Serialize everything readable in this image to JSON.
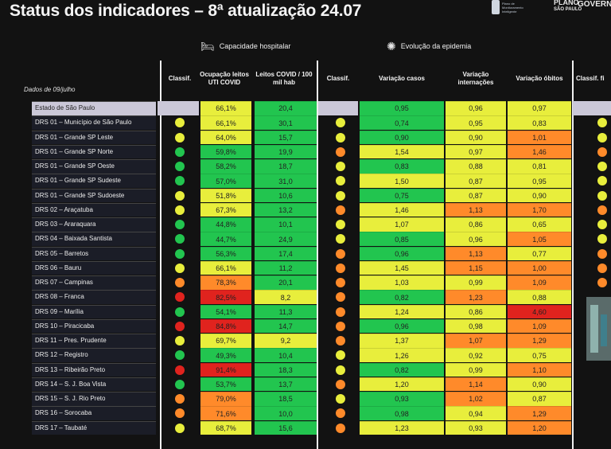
{
  "title": "Status dos indicadores – 8ª atualização 24.07",
  "logo": {
    "plano": "PLANO",
    "sp": "SÃO PAULO",
    "gov": "GOVERNO",
    "sub": "Plano de Monitoramento Inteligente"
  },
  "section_hospital": {
    "icon": "hospital-bed-icon",
    "label": "Capacidade hospitalar"
  },
  "section_epidemia": {
    "icon": "virus-icon",
    "label": "Evolução da epidemia"
  },
  "dados": "Dados de 09/julho",
  "headers": {
    "classif1": "Classif.",
    "ocupacao": "Ocupação leitos UTI COVID",
    "leitos": "Leitos COVID / 100 mil hab",
    "classif2": "Classif.",
    "var_casos": "Variação casos",
    "var_intern": "Variação internações",
    "var_obitos": "Variação óbitos",
    "classif3": "Classif. fi"
  },
  "colors": {
    "green": "#22c54f",
    "lightgreen": "#7fd43c",
    "yellow": "#e8ee3c",
    "orange": "#ff8a2a",
    "red": "#e0231e",
    "state": "#cbc8d8"
  },
  "rows": [
    {
      "name": "Estado de São Paulo",
      "state": true,
      "c1": "",
      "ocup": "66,1%",
      "ocup_c": "yellow",
      "leit": "20,4",
      "leit_c": "green",
      "c2": "",
      "casos": "0,95",
      "casos_c": "green",
      "intern": "0,96",
      "intern_c": "yellow",
      "obitos": "0,97",
      "obitos_c": "yellow",
      "c3": ""
    },
    {
      "name": "DRS 01 – Município de São Paulo",
      "c1": "yellow",
      "ocup": "66,1%",
      "ocup_c": "yellow",
      "leit": "30,1",
      "leit_c": "green",
      "c2": "yellow",
      "casos": "0,74",
      "casos_c": "green",
      "intern": "0,95",
      "intern_c": "yellow",
      "obitos": "0,83",
      "obitos_c": "yellow",
      "c3": "yellow"
    },
    {
      "name": "DRS 01 – Grande SP Leste",
      "c1": "yellow",
      "ocup": "64,0%",
      "ocup_c": "yellow",
      "leit": "15,7",
      "leit_c": "green",
      "c2": "yellow",
      "casos": "0,90",
      "casos_c": "green",
      "intern": "0,90",
      "intern_c": "yellow",
      "obitos": "1,01",
      "obitos_c": "orange",
      "c3": "yellow"
    },
    {
      "name": "DRS 01 – Grande SP Norte",
      "c1": "green",
      "ocup": "59,8%",
      "ocup_c": "green",
      "leit": "19,9",
      "leit_c": "green",
      "c2": "orange",
      "casos": "1,54",
      "casos_c": "yellow",
      "intern": "0,97",
      "intern_c": "yellow",
      "obitos": "1,46",
      "obitos_c": "orange",
      "c3": "orange"
    },
    {
      "name": "DRS 01 – Grande SP Oeste",
      "c1": "green",
      "ocup": "58,2%",
      "ocup_c": "green",
      "leit": "18,7",
      "leit_c": "green",
      "c2": "yellow",
      "casos": "0,83",
      "casos_c": "green",
      "intern": "0,88",
      "intern_c": "yellow",
      "obitos": "0,81",
      "obitos_c": "yellow",
      "c3": "yellow"
    },
    {
      "name": "DRS 01 – Grande SP Sudeste",
      "c1": "green",
      "ocup": "57,0%",
      "ocup_c": "green",
      "leit": "31,0",
      "leit_c": "green",
      "c2": "yellow",
      "casos": "1,50",
      "casos_c": "yellow",
      "intern": "0,87",
      "intern_c": "yellow",
      "obitos": "0,95",
      "obitos_c": "yellow",
      "c3": "yellow"
    },
    {
      "name": "DRS 01 – Grande SP Sudoeste",
      "c1": "yellow",
      "ocup": "51,8%",
      "ocup_c": "yellow",
      "leit": "10,6",
      "leit_c": "green",
      "c2": "yellow",
      "casos": "0,75",
      "casos_c": "green",
      "intern": "0,87",
      "intern_c": "yellow",
      "obitos": "0,90",
      "obitos_c": "yellow",
      "c3": "yellow"
    },
    {
      "name": "DRS 02 – Araçatuba",
      "c1": "yellow",
      "ocup": "67,3%",
      "ocup_c": "yellow",
      "leit": "13,2",
      "leit_c": "green",
      "c2": "orange",
      "casos": "1,46",
      "casos_c": "yellow",
      "intern": "1,13",
      "intern_c": "orange",
      "obitos": "1,70",
      "obitos_c": "orange",
      "c3": "orange"
    },
    {
      "name": "DRS 03 – Araraquara",
      "c1": "green",
      "ocup": "44,8%",
      "ocup_c": "green",
      "leit": "10,1",
      "leit_c": "green",
      "c2": "yellow",
      "casos": "1,07",
      "casos_c": "yellow",
      "intern": "0,86",
      "intern_c": "yellow",
      "obitos": "0,65",
      "obitos_c": "yellow",
      "c3": "yellow"
    },
    {
      "name": "DRS 04 – Baixada Santista",
      "c1": "green",
      "ocup": "44,7%",
      "ocup_c": "green",
      "leit": "24,9",
      "leit_c": "green",
      "c2": "yellow",
      "casos": "0,85",
      "casos_c": "green",
      "intern": "0,96",
      "intern_c": "yellow",
      "obitos": "1,05",
      "obitos_c": "orange",
      "c3": "yellow"
    },
    {
      "name": "DRS 05 – Barretos",
      "c1": "green",
      "ocup": "56,3%",
      "ocup_c": "green",
      "leit": "17,4",
      "leit_c": "green",
      "c2": "orange",
      "casos": "0,96",
      "casos_c": "green",
      "intern": "1,13",
      "intern_c": "orange",
      "obitos": "0,77",
      "obitos_c": "yellow",
      "c3": "orange"
    },
    {
      "name": "DRS 06 – Bauru",
      "c1": "yellow",
      "ocup": "66,1%",
      "ocup_c": "yellow",
      "leit": "11,2",
      "leit_c": "green",
      "c2": "orange",
      "casos": "1,45",
      "casos_c": "yellow",
      "intern": "1,15",
      "intern_c": "orange",
      "obitos": "1,00",
      "obitos_c": "orange",
      "c3": "orange"
    },
    {
      "name": "DRS 07 – Campinas",
      "c1": "orange",
      "ocup": "78,3%",
      "ocup_c": "orange",
      "leit": "20,1",
      "leit_c": "green",
      "c2": "orange",
      "casos": "1,03",
      "casos_c": "yellow",
      "intern": "0,99",
      "intern_c": "yellow",
      "obitos": "1,09",
      "obitos_c": "orange",
      "c3": "orange"
    },
    {
      "name": "DRS 08 – Franca",
      "c1": "red",
      "ocup": "82,5%",
      "ocup_c": "red",
      "leit": "8,2",
      "leit_c": "yellow",
      "c2": "orange",
      "casos": "0,82",
      "casos_c": "green",
      "intern": "1,23",
      "intern_c": "orange",
      "obitos": "0,88",
      "obitos_c": "yellow",
      "c3": ""
    },
    {
      "name": "DRS 09 – Marília",
      "c1": "green",
      "ocup": "54,1%",
      "ocup_c": "green",
      "leit": "11,3",
      "leit_c": "green",
      "c2": "orange",
      "casos": "1,24",
      "casos_c": "yellow",
      "intern": "0,86",
      "intern_c": "yellow",
      "obitos": "4,60",
      "obitos_c": "red",
      "c3": ""
    },
    {
      "name": "DRS 10 – Piracicaba",
      "c1": "red",
      "ocup": "84,8%",
      "ocup_c": "red",
      "leit": "14,7",
      "leit_c": "green",
      "c2": "orange",
      "casos": "0,96",
      "casos_c": "green",
      "intern": "0,98",
      "intern_c": "yellow",
      "obitos": "1,09",
      "obitos_c": "orange",
      "c3": ""
    },
    {
      "name": "DRS 11 – Pres. Prudente",
      "c1": "yellow",
      "ocup": "69,7%",
      "ocup_c": "yellow",
      "leit": "9,2",
      "leit_c": "yellow",
      "c2": "orange",
      "casos": "1,37",
      "casos_c": "yellow",
      "intern": "1,07",
      "intern_c": "orange",
      "obitos": "1,29",
      "obitos_c": "orange",
      "c3": ""
    },
    {
      "name": "DRS 12 – Registro",
      "c1": "green",
      "ocup": "49,3%",
      "ocup_c": "green",
      "leit": "10,4",
      "leit_c": "green",
      "c2": "yellow",
      "casos": "1,26",
      "casos_c": "yellow",
      "intern": "0,92",
      "intern_c": "yellow",
      "obitos": "0,75",
      "obitos_c": "yellow",
      "c3": ""
    },
    {
      "name": "DRS 13 – Ribeirão Preto",
      "c1": "red",
      "ocup": "91,4%",
      "ocup_c": "red",
      "leit": "18,3",
      "leit_c": "green",
      "c2": "yellow",
      "casos": "0,82",
      "casos_c": "green",
      "intern": "0,99",
      "intern_c": "yellow",
      "obitos": "1,10",
      "obitos_c": "orange",
      "c3": ""
    },
    {
      "name": "DRS 14 – S. J. Boa Vista",
      "c1": "green",
      "ocup": "53,7%",
      "ocup_c": "green",
      "leit": "13,7",
      "leit_c": "green",
      "c2": "orange",
      "casos": "1,20",
      "casos_c": "yellow",
      "intern": "1,14",
      "intern_c": "orange",
      "obitos": "0,90",
      "obitos_c": "yellow",
      "c3": ""
    },
    {
      "name": "DRS 15 – S. J. Rio Preto",
      "c1": "orange",
      "ocup": "79,0%",
      "ocup_c": "orange",
      "leit": "18,5",
      "leit_c": "green",
      "c2": "yellow",
      "casos": "0,93",
      "casos_c": "green",
      "intern": "1,02",
      "intern_c": "orange",
      "obitos": "0,87",
      "obitos_c": "yellow",
      "c3": ""
    },
    {
      "name": "DRS 16 – Sorocaba",
      "c1": "orange",
      "ocup": "71,6%",
      "ocup_c": "orange",
      "leit": "10,0",
      "leit_c": "green",
      "c2": "orange",
      "casos": "0,98",
      "casos_c": "green",
      "intern": "0,94",
      "intern_c": "yellow",
      "obitos": "1,29",
      "obitos_c": "orange",
      "c3": ""
    },
    {
      "name": "DRS 17 – Taubaté",
      "c1": "yellow",
      "ocup": "68,7%",
      "ocup_c": "yellow",
      "leit": "15,6",
      "leit_c": "green",
      "c2": "orange",
      "casos": "1,23",
      "casos_c": "yellow",
      "intern": "0,93",
      "intern_c": "yellow",
      "obitos": "1,20",
      "obitos_c": "orange",
      "c3": ""
    }
  ]
}
